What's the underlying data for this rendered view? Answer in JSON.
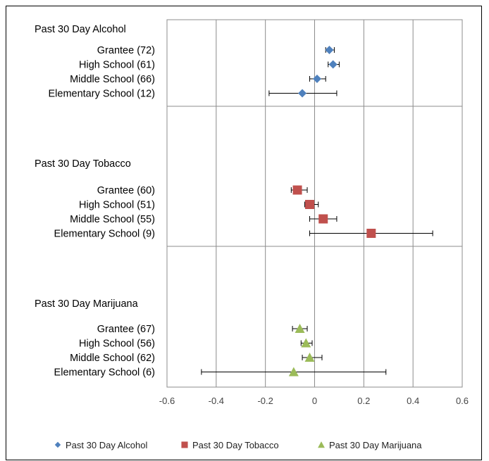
{
  "chart_data": {
    "type": "scatter",
    "title": "",
    "xlabel": "",
    "ylabel": "",
    "xlim": [
      -0.6,
      0.6
    ],
    "x_ticks": [
      -0.6,
      -0.4,
      -0.2,
      0,
      0.2,
      0.4,
      0.6
    ],
    "x_tick_labels": [
      "-0.6",
      "-0.4",
      "-0.2",
      "0",
      "0.2",
      "0.4",
      "0.6"
    ],
    "grid": true,
    "legend_position": "bottom",
    "groups": [
      {
        "name": "Past 30 Day Alcohol",
        "color": "#4F81BD",
        "marker": "diamond",
        "items": [
          {
            "label": "Grantee (72)",
            "value": 0.06,
            "ci": [
              0.045,
              0.08
            ]
          },
          {
            "label": "High School (61)",
            "value": 0.075,
            "ci": [
              0.055,
              0.1
            ]
          },
          {
            "label": "Middle School (66)",
            "value": 0.01,
            "ci": [
              -0.02,
              0.045
            ]
          },
          {
            "label": "Elementary School (12)",
            "value": -0.05,
            "ci": [
              -0.185,
              0.09
            ]
          }
        ]
      },
      {
        "name": "Past 30 Day Tobacco",
        "color": "#C0504D",
        "marker": "square",
        "items": [
          {
            "label": "Grantee (60)",
            "value": -0.07,
            "ci": [
              -0.095,
              -0.03
            ]
          },
          {
            "label": "High School (51)",
            "value": -0.02,
            "ci": [
              -0.04,
              0.015
            ]
          },
          {
            "label": "Middle School (55)",
            "value": 0.035,
            "ci": [
              -0.02,
              0.09
            ]
          },
          {
            "label": "Elementary School (9)",
            "value": 0.23,
            "ci": [
              -0.02,
              0.48
            ]
          }
        ]
      },
      {
        "name": "Past 30 Day Marijuana",
        "color": "#9BBB59",
        "marker": "triangle",
        "items": [
          {
            "label": "Grantee (67)",
            "value": -0.06,
            "ci": [
              -0.09,
              -0.03
            ]
          },
          {
            "label": "High School (56)",
            "value": -0.035,
            "ci": [
              -0.055,
              -0.01
            ]
          },
          {
            "label": "Middle School (62)",
            "value": -0.02,
            "ci": [
              -0.05,
              0.03
            ]
          },
          {
            "label": "Elementary School (6)",
            "value": -0.085,
            "ci": [
              -0.46,
              0.29
            ]
          }
        ]
      }
    ]
  }
}
